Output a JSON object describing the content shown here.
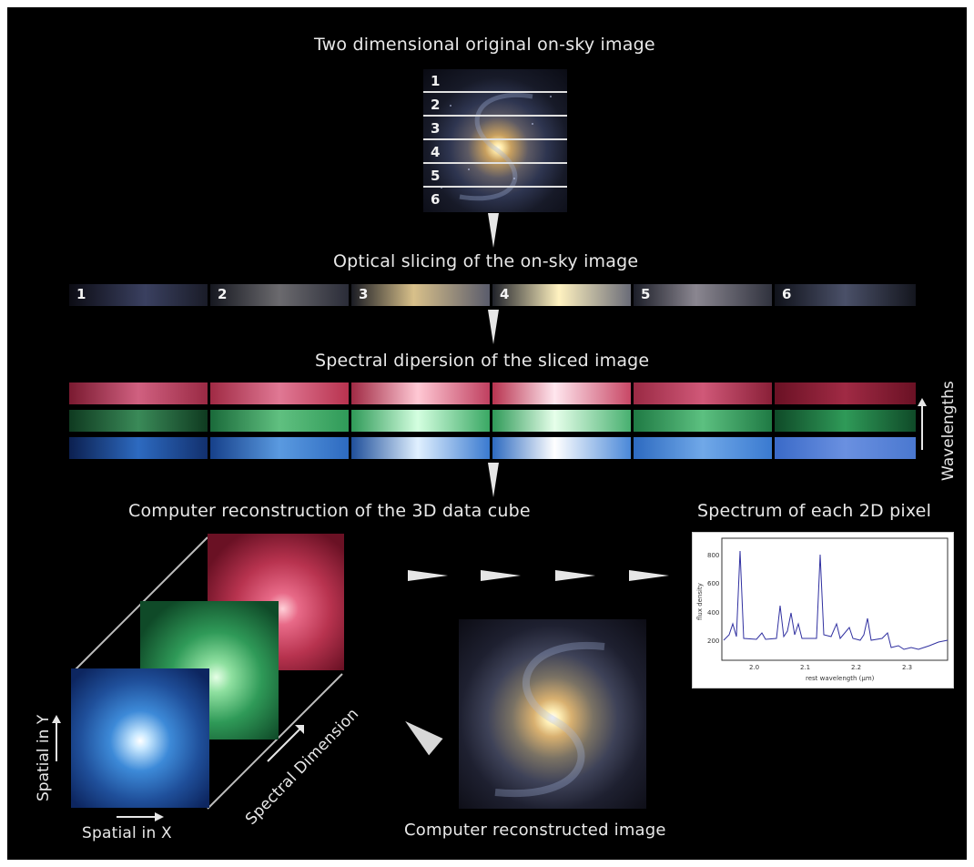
{
  "labels": {
    "title_top": "Two dimensional original on-sky image",
    "optical_slicing": "Optical slicing of the on-sky image",
    "spectral_dispersion": "Spectral dipersion of the sliced image",
    "reconstruction_cube": "Computer reconstruction of the 3D data cube",
    "spectrum_pixel": "Spectrum of each 2D pixel",
    "reconstructed_image": "Computer reconstructed image",
    "wavelengths": "Wavelengths",
    "spatial_x": "Spatial in X",
    "spatial_y": "Spatial in Y",
    "spectral_dimension": "Spectral Dimension"
  },
  "slices": [
    "1",
    "2",
    "3",
    "4",
    "5",
    "6"
  ],
  "strip_numbers": [
    "1",
    "2",
    "3",
    "4",
    "5",
    "6"
  ],
  "spectrum_plot": {
    "xlabel": "rest wavelength (µm)",
    "ylabel": "flux density",
    "x_ticks": [
      "2.0",
      "2.1",
      "2.2",
      "2.3"
    ],
    "y_ticks": [
      "200",
      "400",
      "600",
      "800"
    ]
  },
  "colors": {
    "background": "#000000",
    "text": "#e8e8e8",
    "red_band": "#b8334f",
    "green_band": "#2f9a58",
    "blue_band": "#2d6ac0",
    "spectrum_line": "#3030a0"
  }
}
